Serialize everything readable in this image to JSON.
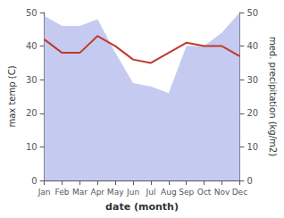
{
  "chart_data": {
    "type": "line",
    "xlabel": "date (month)",
    "ylabel": "max temp (C)",
    "y2label": "med. precipitation (kg/m2)",
    "categories": [
      "Jan",
      "Feb",
      "Mar",
      "Apr",
      "May",
      "Jun",
      "Jul",
      "Aug",
      "Sep",
      "Oct",
      "Nov",
      "Dec"
    ],
    "series": [
      {
        "type": "line",
        "color": "#c0392b",
        "values": [
          42,
          38,
          38,
          43,
          40,
          36,
          35,
          38,
          41,
          40,
          40,
          37
        ]
      },
      {
        "type": "area",
        "color": "#c5cbf0",
        "axis": "y2",
        "values": [
          49,
          46,
          46,
          48,
          38,
          29,
          28,
          26,
          40,
          40,
          44,
          50
        ]
      }
    ],
    "ylim": [
      0,
      50
    ],
    "yticks": [
      0,
      10,
      20,
      30,
      40,
      50
    ],
    "y2lim": [
      0,
      50
    ],
    "y2ticks": [
      0,
      10,
      20,
      30,
      40,
      50
    ],
    "grid": false
  }
}
